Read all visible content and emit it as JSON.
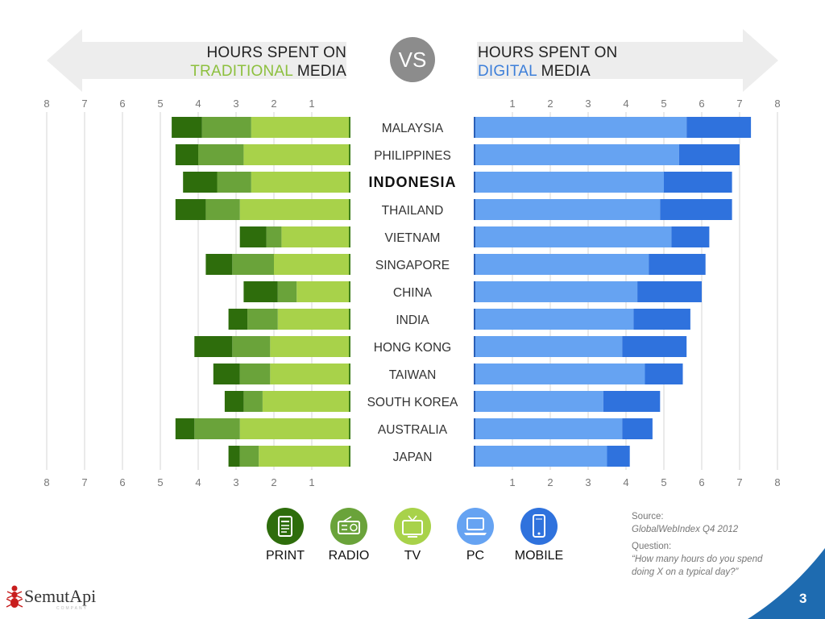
{
  "header": {
    "left_title_line1": "HOURS SPENT ON",
    "left_title_accent": "TRADITIONAL",
    "left_title_rest": " MEDIA",
    "right_title_line1": "HOURS SPENT ON",
    "right_title_accent": "DIGITAL",
    "right_title_rest": " MEDIA",
    "vs": "VS"
  },
  "legend": [
    {
      "label": "PRINT",
      "color": "#2e6d0c",
      "icon": "newspaper-icon"
    },
    {
      "label": "RADIO",
      "color": "#6aa33a",
      "icon": "radio-icon"
    },
    {
      "label": "TV",
      "color": "#a8d24a",
      "icon": "tv-icon"
    },
    {
      "label": "PC",
      "color": "#66a3f2",
      "icon": "laptop-icon"
    },
    {
      "label": "MOBILE",
      "color": "#2f72dd",
      "icon": "mobile-phone-icon"
    }
  ],
  "source": {
    "label": "Source:",
    "value": "GlobalWebIndex Q4 2012",
    "question_label": "Question:",
    "question_line1": "“How many hours do you spend",
    "question_line2": "doing X on a typical day?”"
  },
  "brand": {
    "name": "SemutApi",
    "tagline": "COMPANY"
  },
  "page_number": "3",
  "chart_data": {
    "type": "bar",
    "orientation": "horizontal-diverging",
    "categories": [
      "MALAYSIA",
      "PHILIPPINES",
      "INDONESIA",
      "THAILAND",
      "VIETNAM",
      "SINGAPORE",
      "CHINA",
      "INDIA",
      "HONG KONG",
      "TAIWAN",
      "SOUTH KOREA",
      "AUSTRALIA",
      "JAPAN"
    ],
    "highlighted_category": "INDONESIA",
    "axis": {
      "min": 0,
      "max": 8,
      "left_ticks": [
        "8",
        "7",
        "6",
        "5",
        "4",
        "3",
        "2",
        "1"
      ],
      "right_ticks": [
        "1",
        "2",
        "3",
        "4",
        "5",
        "6",
        "7",
        "8"
      ]
    },
    "grid": true,
    "traditional": {
      "series": [
        {
          "name": "TV",
          "color": "#a8d24a",
          "values": [
            2.6,
            2.8,
            2.6,
            2.9,
            1.8,
            2.0,
            1.4,
            1.9,
            2.1,
            2.1,
            2.3,
            2.9,
            2.4
          ]
        },
        {
          "name": "RADIO",
          "color": "#6aa33a",
          "values": [
            1.3,
            1.2,
            0.9,
            0.9,
            0.4,
            1.1,
            0.5,
            0.8,
            1.0,
            0.8,
            0.5,
            1.2,
            0.5
          ]
        },
        {
          "name": "PRINT",
          "color": "#2e6d0c",
          "values": [
            0.8,
            0.6,
            0.9,
            0.8,
            0.7,
            0.7,
            0.9,
            0.5,
            1.0,
            0.7,
            0.5,
            0.5,
            0.3
          ]
        }
      ]
    },
    "digital": {
      "series": [
        {
          "name": "PC",
          "color": "#66a3f2",
          "values": [
            5.6,
            5.4,
            5.0,
            4.9,
            5.2,
            4.6,
            4.3,
            4.2,
            3.9,
            4.5,
            3.4,
            3.9,
            3.5
          ]
        },
        {
          "name": "MOBILE",
          "color": "#2f72dd",
          "values": [
            1.7,
            1.6,
            1.8,
            1.9,
            1.0,
            1.5,
            1.7,
            1.5,
            1.7,
            1.0,
            1.5,
            0.8,
            0.6
          ]
        }
      ]
    }
  }
}
